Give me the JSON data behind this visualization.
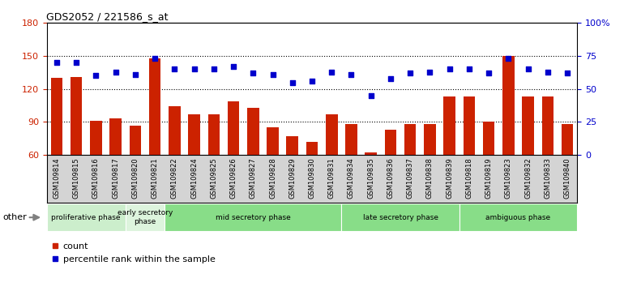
{
  "title": "GDS2052 / 221586_s_at",
  "samples": [
    "GSM109814",
    "GSM109815",
    "GSM109816",
    "GSM109817",
    "GSM109820",
    "GSM109821",
    "GSM109822",
    "GSM109824",
    "GSM109825",
    "GSM109826",
    "GSM109827",
    "GSM109828",
    "GSM109829",
    "GSM109830",
    "GSM109831",
    "GSM109834",
    "GSM109835",
    "GSM109836",
    "GSM109837",
    "GSM109838",
    "GSM109839",
    "GSM109818",
    "GSM109819",
    "GSM109823",
    "GSM109832",
    "GSM109833",
    "GSM109840"
  ],
  "counts": [
    130,
    131,
    91,
    93,
    87,
    148,
    104,
    97,
    97,
    109,
    103,
    85,
    77,
    72,
    97,
    88,
    62,
    83,
    88,
    88,
    113,
    113,
    90,
    150,
    113,
    113,
    88
  ],
  "percentiles": [
    70,
    70,
    60,
    63,
    61,
    73,
    65,
    65,
    65,
    67,
    62,
    61,
    55,
    56,
    63,
    61,
    45,
    58,
    62,
    63,
    65,
    65,
    62,
    73,
    65,
    63,
    62
  ],
  "phases": [
    {
      "label": "proliferative phase",
      "start": 0,
      "end": 4,
      "color": "#cceecc"
    },
    {
      "label": "early secretory\nphase",
      "start": 4,
      "end": 6,
      "color": "#ddf4dd"
    },
    {
      "label": "mid secretory phase",
      "start": 6,
      "end": 15,
      "color": "#88dd88"
    },
    {
      "label": "late secretory phase",
      "start": 15,
      "end": 21,
      "color": "#88dd88"
    },
    {
      "label": "ambiguous phase",
      "start": 21,
      "end": 27,
      "color": "#88dd88"
    }
  ],
  "ylim_left": [
    60,
    180
  ],
  "ylim_right": [
    0,
    100
  ],
  "bar_color": "#cc2200",
  "dot_color": "#0000cc",
  "bar_width": 0.6,
  "tick_color_left": "#cc2200",
  "tick_color_right": "#0000cc",
  "yticks_left": [
    60,
    90,
    120,
    150,
    180
  ],
  "yticks_right": [
    0,
    25,
    50,
    75,
    100
  ],
  "ytick_labels_right": [
    "0",
    "25",
    "50",
    "75",
    "100%"
  ],
  "hline_values": [
    90,
    120,
    150
  ],
  "plot_bg": "#ffffff",
  "tick_bg_color": "#d4d4d4"
}
